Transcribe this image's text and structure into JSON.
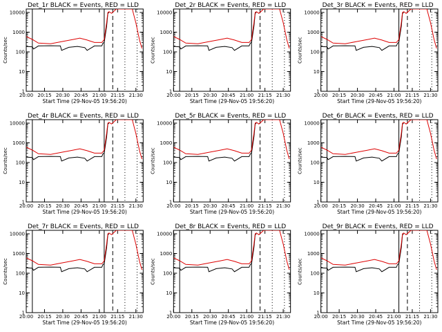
{
  "layout": {
    "rows": 3,
    "cols": 3
  },
  "colors": {
    "events": "#000000",
    "lld": "#dd0000",
    "background": "#ffffff",
    "axes": "#000000"
  },
  "common": {
    "ylabel": "Counts/sec",
    "yticks": [
      "1",
      "10",
      "100",
      "1000",
      "10000"
    ],
    "xticks": [
      "20:00",
      "20:15",
      "20:30",
      "20:45",
      "21:00",
      "21:15",
      "21:30"
    ],
    "time_axis": {
      "start": "20:00",
      "end": "21:36"
    },
    "yscale": "log",
    "ylim": [
      1,
      15000
    ]
  },
  "panels": [
    {
      "title": "Det_1r BLACK = Events, RED = LLD",
      "xlabel": "Start Time (29-Nov-05 19:56:20)"
    },
    {
      "title": "Det_2r BLACK = Events, RED = LLD",
      "xlabel": "Start Time (29-Nov-05 19:56:20)"
    },
    {
      "title": "Det_3r BLACK = Events, RED = LLD",
      "xlabel": "Start Time (29-Nov-05 19:56:20)"
    },
    {
      "title": "Det_4r BLACK = Events, RED = LLD",
      "xlabel": "Start Time (29-Nov-05 19:56:20)"
    },
    {
      "title": "Det_5r BLACK = Events, RED = LLD",
      "xlabel": "Start Time (29-Nov-05 19:56:20)"
    },
    {
      "title": "Det_6r BLACK = Events, RED = LLD",
      "xlabel": "Start Time (29-Nov-05 19:56:20)"
    },
    {
      "title": "Det_7r BLACK = Events, RED = LLD",
      "xlabel": "Start Time (29-Nov-05 19:56:20)"
    },
    {
      "title": "Det_8r BLACK = Events, RED = LLD",
      "xlabel": "Start Time (29-Nov-05 19:56:20)"
    },
    {
      "title": "Det_9r BLACK = Events, RED = LLD",
      "xlabel": "Start Time (29-Nov-05 19:56:20)"
    }
  ],
  "chart_data": {
    "type": "line",
    "description": "Nine detector count-rate time series, log y axis",
    "markers": {
      "solid_lines": [
        "20:05",
        "21:04"
      ],
      "dashed_line": "21:11",
      "dotted_lines": [
        "21:21",
        "21:31"
      ]
    },
    "series": [
      {
        "name": "Events",
        "color": "#000000",
        "points": [
          [
            "20:00",
            190
          ],
          [
            "20:05",
            180
          ],
          [
            "20:06",
            140
          ],
          [
            "20:10",
            200
          ],
          [
            "20:20",
            205
          ],
          [
            "20:28",
            200
          ],
          [
            "20:29",
            120
          ],
          [
            "20:35",
            170
          ],
          [
            "20:42",
            190
          ],
          [
            "20:48",
            165
          ],
          [
            "20:50",
            120
          ],
          [
            "20:56",
            200
          ],
          [
            "21:02",
            200
          ],
          [
            "21:03",
            280
          ],
          [
            "21:04",
            300
          ],
          [
            "21:06",
            2000
          ],
          [
            "21:07",
            9000
          ],
          [
            "21:08",
            10000
          ]
        ]
      },
      {
        "name": "LLD",
        "color": "#dd0000",
        "points": [
          [
            "20:00",
            600
          ],
          [
            "20:05",
            430
          ],
          [
            "20:10",
            280
          ],
          [
            "20:20",
            260
          ],
          [
            "20:30",
            340
          ],
          [
            "20:38",
            420
          ],
          [
            "20:44",
            500
          ],
          [
            "20:50",
            400
          ],
          [
            "20:56",
            300
          ],
          [
            "21:02",
            300
          ],
          [
            "21:04",
            420
          ],
          [
            "21:06",
            3000
          ],
          [
            "21:07",
            10000
          ],
          [
            "21:08",
            11000
          ],
          [
            "21:10",
            9000
          ],
          [
            "21:14",
            15000
          ],
          [
            "21:27",
            15000
          ],
          [
            "21:30",
            3000
          ],
          [
            "21:33",
            400
          ],
          [
            "21:35",
            150
          ]
        ]
      }
    ]
  }
}
